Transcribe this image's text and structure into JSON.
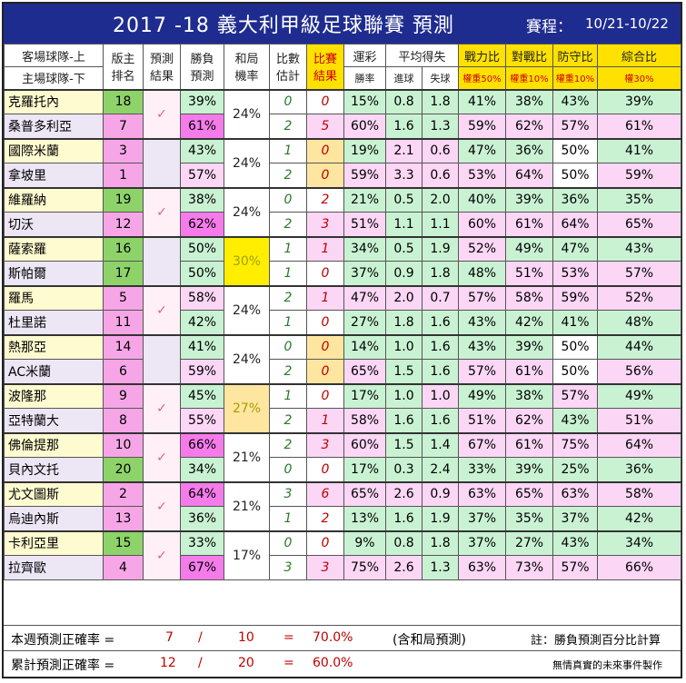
{
  "header": {
    "title": "2017 -18  義大利甲級足球聯賽  預測",
    "schedule_label": "賽程：",
    "schedule_value": "10/21-10/22"
  },
  "columns": {
    "team_top": "客場球隊-上",
    "team_bottom": "主場球隊-下",
    "rank_a": "版主",
    "rank_b": "排名",
    "pred_a": "預測",
    "pred_b": "結果",
    "wl_a": "勝負",
    "wl_b": "預測",
    "draw_a": "和局",
    "draw_b": "機率",
    "score_a": "比數",
    "score_b": "估計",
    "result_a": "比賽",
    "result_b": "結果",
    "lottery": "運彩",
    "lottery_sub": "勝率",
    "avg": "平均得失",
    "avg_for": "進球",
    "avg_against": "失球",
    "power": "戰力比",
    "power_w": "權重50%",
    "h2h": "對戰比",
    "h2h_w": "權重10%",
    "defense": "防守比",
    "defense_w": "權重10%",
    "overall": "綜合比",
    "overall_w": "權30%"
  },
  "chart_data": {
    "type": "table",
    "matches": [
      {
        "check": "✓",
        "draw": "24%",
        "draw_color": "#ffffff",
        "teams": [
          {
            "name": "克羅托內",
            "rank": "18",
            "wl": "39%",
            "score": "0",
            "result": "0",
            "lottery": "15%",
            "gf": "0.8",
            "ga": "1.8",
            "power": "41%",
            "h2h": "38%",
            "defense": "43%",
            "overall": "39%"
          },
          {
            "name": "桑普多利亞",
            "rank": "7",
            "wl": "61%",
            "score": "2",
            "result": "5",
            "lottery": "60%",
            "gf": "1.6",
            "ga": "1.3",
            "power": "59%",
            "h2h": "62%",
            "defense": "57%",
            "overall": "61%"
          }
        ]
      },
      {
        "check": "",
        "draw": "24%",
        "draw_color": "#ffffff",
        "teams": [
          {
            "name": "國際米蘭",
            "rank": "3",
            "wl": "43%",
            "score": "1",
            "result": "0",
            "lottery": "19%",
            "gf": "2.1",
            "ga": "0.6",
            "power": "47%",
            "h2h": "36%",
            "defense": "50%",
            "overall": "41%"
          },
          {
            "name": "拿坡里",
            "rank": "1",
            "wl": "57%",
            "score": "2",
            "result": "0",
            "lottery": "59%",
            "gf": "3.3",
            "ga": "0.6",
            "power": "53%",
            "h2h": "64%",
            "defense": "50%",
            "overall": "59%"
          }
        ]
      },
      {
        "check": "✓",
        "draw": "24%",
        "draw_color": "#ffffff",
        "teams": [
          {
            "name": "維羅納",
            "rank": "19",
            "wl": "38%",
            "score": "0",
            "result": "2",
            "lottery": "21%",
            "gf": "0.5",
            "ga": "2.0",
            "power": "40%",
            "h2h": "39%",
            "defense": "36%",
            "overall": "35%"
          },
          {
            "name": "切沃",
            "rank": "12",
            "wl": "62%",
            "score": "2",
            "result": "3",
            "lottery": "51%",
            "gf": "1.1",
            "ga": "1.1",
            "power": "60%",
            "h2h": "61%",
            "defense": "64%",
            "overall": "65%"
          }
        ]
      },
      {
        "check": "",
        "draw": "30%",
        "draw_color": "#ffee00",
        "teams": [
          {
            "name": "薩索羅",
            "rank": "16",
            "wl": "50%",
            "score": "1",
            "result": "1",
            "lottery": "34%",
            "gf": "0.5",
            "ga": "1.9",
            "power": "52%",
            "h2h": "49%",
            "defense": "47%",
            "overall": "43%"
          },
          {
            "name": "斯帕爾",
            "rank": "17",
            "wl": "50%",
            "score": "1",
            "result": "0",
            "lottery": "37%",
            "gf": "0.9",
            "ga": "1.8",
            "power": "48%",
            "h2h": "51%",
            "defense": "53%",
            "overall": "57%"
          }
        ]
      },
      {
        "check": "✓",
        "draw": "24%",
        "draw_color": "#ffffff",
        "teams": [
          {
            "name": "羅馬",
            "rank": "5",
            "wl": "58%",
            "score": "2",
            "result": "1",
            "lottery": "47%",
            "gf": "2.0",
            "ga": "0.7",
            "power": "57%",
            "h2h": "58%",
            "defense": "59%",
            "overall": "52%"
          },
          {
            "name": "杜里諾",
            "rank": "11",
            "wl": "42%",
            "score": "1",
            "result": "0",
            "lottery": "27%",
            "gf": "1.8",
            "ga": "1.6",
            "power": "43%",
            "h2h": "42%",
            "defense": "41%",
            "overall": "48%"
          }
        ]
      },
      {
        "check": "",
        "draw": "24%",
        "draw_color": "#ffffff",
        "teams": [
          {
            "name": "熱那亞",
            "rank": "14",
            "wl": "41%",
            "score": "0",
            "result": "0",
            "lottery": "14%",
            "gf": "1.0",
            "ga": "1.6",
            "power": "43%",
            "h2h": "39%",
            "defense": "50%",
            "overall": "44%"
          },
          {
            "name": "AC米蘭",
            "rank": "6",
            "wl": "59%",
            "score": "2",
            "result": "0",
            "lottery": "65%",
            "gf": "1.5",
            "ga": "1.6",
            "power": "57%",
            "h2h": "61%",
            "defense": "50%",
            "overall": "56%"
          }
        ]
      },
      {
        "check": "✓",
        "draw": "27%",
        "draw_color": "#ffe6a0",
        "teams": [
          {
            "name": "波隆那",
            "rank": "9",
            "wl": "45%",
            "score": "1",
            "result": "0",
            "lottery": "17%",
            "gf": "1.0",
            "ga": "1.0",
            "power": "49%",
            "h2h": "38%",
            "defense": "57%",
            "overall": "49%"
          },
          {
            "name": "亞特蘭大",
            "rank": "8",
            "wl": "55%",
            "score": "2",
            "result": "1",
            "lottery": "58%",
            "gf": "1.6",
            "ga": "1.6",
            "power": "51%",
            "h2h": "62%",
            "defense": "43%",
            "overall": "51%"
          }
        ]
      },
      {
        "check": "✓",
        "draw": "21%",
        "draw_color": "#ffffff",
        "teams": [
          {
            "name": "佛倫提那",
            "rank": "10",
            "wl": "66%",
            "score": "2",
            "result": "3",
            "lottery": "60%",
            "gf": "1.5",
            "ga": "1.4",
            "power": "67%",
            "h2h": "61%",
            "defense": "75%",
            "overall": "64%"
          },
          {
            "name": "貝內文托",
            "rank": "20",
            "wl": "34%",
            "score": "0",
            "result": "0",
            "lottery": "17%",
            "gf": "0.3",
            "ga": "2.4",
            "power": "33%",
            "h2h": "39%",
            "defense": "25%",
            "overall": "36%"
          }
        ]
      },
      {
        "check": "✓",
        "draw": "21%",
        "draw_color": "#ffffff",
        "teams": [
          {
            "name": "尤文圖斯",
            "rank": "2",
            "wl": "64%",
            "score": "3",
            "result": "6",
            "lottery": "65%",
            "gf": "2.6",
            "ga": "0.9",
            "power": "63%",
            "h2h": "65%",
            "defense": "63%",
            "overall": "58%"
          },
          {
            "name": "烏迪內斯",
            "rank": "13",
            "wl": "36%",
            "score": "1",
            "result": "2",
            "lottery": "13%",
            "gf": "1.6",
            "ga": "1.9",
            "power": "37%",
            "h2h": "35%",
            "defense": "37%",
            "overall": "42%"
          }
        ]
      },
      {
        "check": "✓",
        "draw": "17%",
        "draw_color": "#ffffff",
        "teams": [
          {
            "name": "卡利亞里",
            "rank": "15",
            "wl": "33%",
            "score": "0",
            "result": "0",
            "lottery": "9%",
            "gf": "0.8",
            "ga": "1.8",
            "power": "37%",
            "h2h": "27%",
            "defense": "43%",
            "overall": "34%"
          },
          {
            "name": "拉齊歐",
            "rank": "4",
            "wl": "67%",
            "score": "3",
            "result": "3",
            "lottery": "75%",
            "gf": "2.6",
            "ga": "1.3",
            "power": "63%",
            "h2h": "73%",
            "defense": "57%",
            "overall": "66%"
          }
        ]
      }
    ]
  },
  "summary": {
    "week_label": "本週預測正確率 =",
    "week_correct": "7",
    "week_slash": "/",
    "week_total": "10",
    "week_eq": "=",
    "week_rate": "70.0%",
    "week_note": "(含和局預測)",
    "note": "註：勝負預測百分比計算",
    "cum_label": "累計預測正確率 =",
    "cum_correct": "12",
    "cum_slash": "/",
    "cum_total": "20",
    "cum_eq": "=",
    "cum_rate": "60.0%",
    "credit": "無情真實的未來事件製作"
  },
  "colors": {
    "title_bg": "#1f2c8f",
    "away_bg": "#fffbd0",
    "home_bg": "#ece6f5",
    "rank_high": "#8ed36a",
    "rank_low": "#f6a6e6",
    "win_pink": "#f57bea",
    "light_pink": "#fbd6f5",
    "green_cell": "#c9f2d3",
    "check": "#e0608a"
  }
}
